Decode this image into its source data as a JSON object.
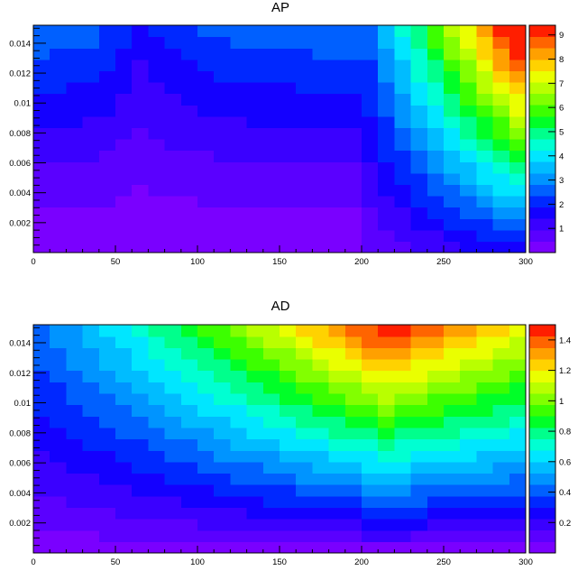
{
  "chart_data": [
    {
      "type": "heatmap",
      "title": "AP",
      "xlim": [
        0,
        300
      ],
      "ylim": [
        0,
        0.0152
      ],
      "x_ticks": [
        "0",
        "50",
        "100",
        "150",
        "200",
        "250",
        "300"
      ],
      "y_ticks": [
        "0.002",
        "0.004",
        "0.006",
        "0.008",
        "0.01",
        "0.012",
        "0.014"
      ],
      "z_range": [
        0,
        9.4
      ],
      "colorbar_ticks": [
        "1",
        "2",
        "3",
        "4",
        "5",
        "6",
        "7",
        "8",
        "9"
      ],
      "contour_levels": 20,
      "palette": "rainbow (violet to red)",
      "x_bins": 30,
      "y_bins": 20,
      "regions": [
        {
          "x_range": [
            0,
            200
          ],
          "z_min": 0.0,
          "z_max": 2.9,
          "valley_x": 63,
          "peak_z_at": [
            0,
            0.0152
          ]
        },
        {
          "x_range": [
            200,
            300
          ],
          "z_min": 0.0,
          "z_max": 9.4,
          "peak_z_at": [
            300,
            0.0152
          ]
        }
      ]
    },
    {
      "type": "heatmap",
      "title": "AD",
      "xlim": [
        0,
        300
      ],
      "ylim": [
        0,
        0.0152
      ],
      "x_ticks": [
        "0",
        "50",
        "100",
        "150",
        "200",
        "250",
        "300"
      ],
      "y_ticks": [
        "0.002",
        "0.004",
        "0.006",
        "0.008",
        "0.01",
        "0.012",
        "0.014"
      ],
      "z_range": [
        0,
        1.5
      ],
      "colorbar_ticks": [
        "0.2",
        "0.4",
        "0.6",
        "0.8",
        "1",
        "1.2",
        "1.4"
      ],
      "contour_levels": 20,
      "palette": "rainbow (violet to red)",
      "x_bins": 30,
      "y_bins": 20,
      "peak": {
        "x": 215,
        "y": 0.0152,
        "z": 1.5
      }
    }
  ]
}
